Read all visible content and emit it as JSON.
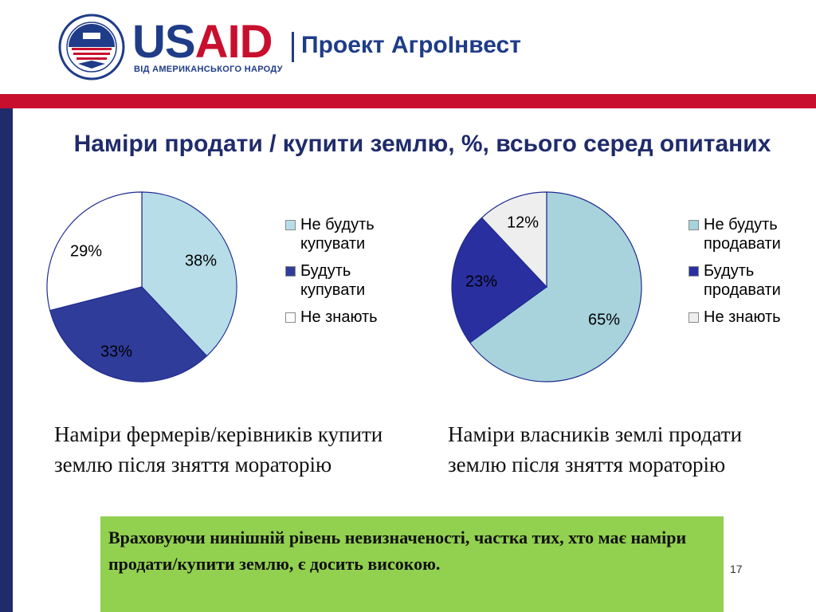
{
  "header": {
    "logo_us": "US",
    "logo_aid": "AID",
    "logo_subtitle": "ВІД АМЕРИКАНСЬКОГО НАРОДУ",
    "project_name": "Проект АгроІнвест"
  },
  "title": "Наміри продати / купити землю, %, всього серед опитаних",
  "chart_data": [
    {
      "type": "pie",
      "categories": [
        "Не будуть купувати",
        "Будуть купувати",
        "Не знають"
      ],
      "values": [
        38,
        33,
        29
      ],
      "labels": [
        "38%",
        "33%",
        "29%"
      ],
      "colors": [
        "#b7dde8",
        "#303c9a",
        "#ffffff"
      ],
      "legend": [
        "Не будуть купувати",
        "Будуть купувати",
        "Не знають"
      ],
      "caption": "Наміри фермерів/керівників купити землю після зняття мораторію"
    },
    {
      "type": "pie",
      "categories": [
        "Не будуть продавати",
        "Будуть продавати",
        "Не знають"
      ],
      "values": [
        65,
        23,
        12
      ],
      "labels": [
        "65%",
        "23%",
        "12%"
      ],
      "colors": [
        "#a8d3dc",
        "#2a2fa0",
        "#eeeeee"
      ],
      "legend": [
        "Не будуть продавати",
        "Будуть продавати",
        "Не знають"
      ],
      "caption": "Наміри власників землі продати землю після зняття мораторію"
    }
  ],
  "note": "Враховуючи нинішній рівень невизначеності, частка тих, хто має наміри продати/купити землю, є досить високою.",
  "page_number": "17"
}
